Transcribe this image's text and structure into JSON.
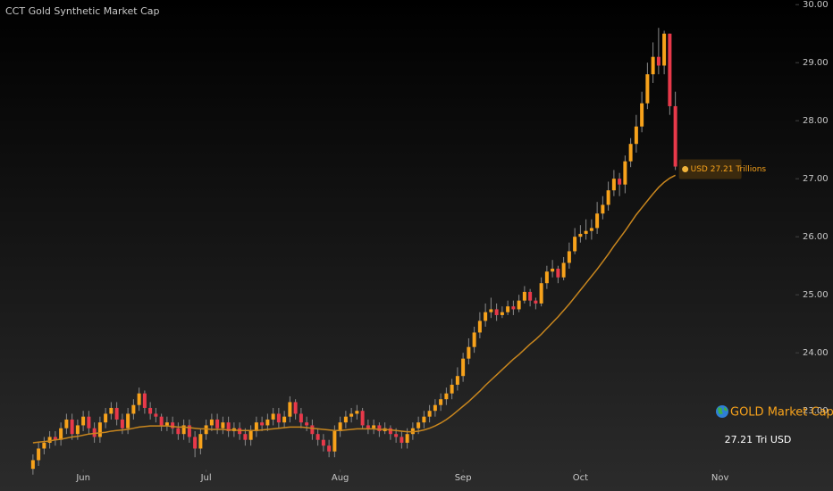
{
  "chart_data": {
    "type": "candlestick",
    "title": "CCT Gold Synthetic Market Cap",
    "price_label": "USD 27.21 Trillions",
    "info_title": "GOLD Market Cap",
    "info_value": "27.21 Tri USD",
    "up_color": "#f7a21b",
    "down_color": "#e8394a",
    "ma_color": "#c8861e",
    "ylim": [
      22.08,
      30.08
    ],
    "yticks": [
      {
        "value": 23,
        "label": "23.00"
      },
      {
        "value": 24,
        "label": "24.00"
      },
      {
        "value": 25,
        "label": "25.00"
      },
      {
        "value": 26,
        "label": "26.00"
      },
      {
        "value": 27,
        "label": "27.00"
      },
      {
        "value": 28,
        "label": "28.00"
      },
      {
        "value": 29,
        "label": "29.00"
      },
      {
        "value": 30,
        "label": "30.00"
      }
    ],
    "xlim": [
      -5.9,
      136.5
    ],
    "xticks": [
      {
        "value": 9,
        "label": "Jun"
      },
      {
        "value": 31,
        "label": "Jul"
      },
      {
        "value": 55,
        "label": "Aug"
      },
      {
        "value": 77,
        "label": "Sep"
      },
      {
        "value": 98,
        "label": "Oct"
      },
      {
        "value": 123,
        "label": "Nov"
      }
    ],
    "open": [
      22.0,
      22.15,
      22.35,
      22.45,
      22.55,
      22.5,
      22.7,
      22.85,
      22.6,
      22.75,
      22.9,
      22.7,
      22.55,
      22.8,
      22.95,
      23.05,
      22.85,
      22.7,
      22.95,
      23.1,
      23.3,
      23.05,
      22.95,
      22.9,
      22.75,
      22.8,
      22.7,
      22.6,
      22.75,
      22.55,
      22.35,
      22.6,
      22.75,
      22.85,
      22.7,
      22.8,
      22.65,
      22.7,
      22.6,
      22.5,
      22.65,
      22.8,
      22.75,
      22.85,
      22.95,
      22.8,
      22.9,
      23.15,
      22.95,
      22.8,
      22.75,
      22.6,
      22.5,
      22.4,
      22.3,
      22.65,
      22.8,
      22.9,
      22.95,
      23.0,
      22.75,
      22.7,
      22.75,
      22.65,
      22.7,
      22.6,
      22.55,
      22.45,
      22.6,
      22.7,
      22.8,
      22.9,
      23.0,
      23.1,
      23.2,
      23.3,
      23.45,
      23.6,
      23.9,
      24.1,
      24.35,
      24.55,
      24.7,
      24.75,
      24.65,
      24.7,
      24.8,
      24.75,
      24.9,
      25.05,
      24.9,
      24.85,
      25.2,
      25.4,
      25.45,
      25.3,
      25.55,
      25.75,
      26.0,
      26.05,
      26.1,
      26.15,
      26.4,
      26.55,
      26.8,
      27.0,
      26.9,
      27.3,
      27.6,
      27.9,
      28.3,
      28.8,
      29.1,
      28.95,
      29.5,
      28.25
    ],
    "high": [
      22.25,
      22.45,
      22.55,
      22.65,
      22.65,
      22.8,
      22.95,
      22.95,
      22.85,
      23.0,
      23.0,
      22.8,
      22.9,
      23.05,
      23.15,
      23.15,
      22.95,
      23.05,
      23.2,
      23.4,
      23.35,
      23.15,
      23.05,
      22.95,
      22.9,
      22.9,
      22.8,
      22.85,
      22.85,
      22.65,
      22.7,
      22.85,
      22.95,
      22.95,
      22.9,
      22.9,
      22.8,
      22.8,
      22.7,
      22.75,
      22.9,
      22.9,
      22.95,
      23.05,
      23.05,
      23.0,
      23.25,
      23.2,
      23.05,
      22.9,
      22.85,
      22.7,
      22.6,
      22.5,
      22.75,
      22.9,
      23.0,
      23.05,
      23.1,
      23.05,
      22.85,
      22.85,
      22.8,
      22.8,
      22.75,
      22.7,
      22.65,
      22.7,
      22.8,
      22.9,
      23.0,
      23.1,
      23.2,
      23.3,
      23.4,
      23.55,
      23.75,
      24.0,
      24.25,
      24.45,
      24.7,
      24.85,
      24.95,
      24.85,
      24.8,
      24.9,
      24.9,
      25.0,
      25.15,
      25.1,
      24.95,
      25.3,
      25.5,
      25.6,
      25.5,
      25.65,
      25.9,
      26.15,
      26.2,
      26.3,
      26.3,
      26.6,
      26.7,
      26.95,
      27.15,
      27.1,
      27.4,
      27.7,
      28.1,
      28.5,
      29.0,
      29.35,
      29.6,
      29.55,
      29.5,
      28.5
    ],
    "low": [
      21.9,
      22.05,
      22.25,
      22.35,
      22.4,
      22.4,
      22.6,
      22.5,
      22.5,
      22.65,
      22.6,
      22.45,
      22.45,
      22.7,
      22.85,
      22.75,
      22.6,
      22.6,
      22.85,
      23.0,
      22.95,
      22.85,
      22.8,
      22.65,
      22.65,
      22.6,
      22.5,
      22.5,
      22.45,
      22.2,
      22.25,
      22.5,
      22.65,
      22.6,
      22.6,
      22.55,
      22.55,
      22.5,
      22.4,
      22.4,
      22.55,
      22.65,
      22.65,
      22.75,
      22.7,
      22.7,
      22.8,
      22.85,
      22.7,
      22.65,
      22.5,
      22.4,
      22.3,
      22.2,
      22.2,
      22.55,
      22.7,
      22.8,
      22.85,
      22.7,
      22.6,
      22.6,
      22.55,
      22.6,
      22.5,
      22.45,
      22.35,
      22.35,
      22.5,
      22.6,
      22.7,
      22.8,
      22.9,
      23.0,
      23.1,
      23.2,
      23.35,
      23.5,
      23.8,
      24.0,
      24.25,
      24.45,
      24.6,
      24.55,
      24.6,
      24.65,
      24.65,
      24.7,
      24.85,
      24.8,
      24.75,
      24.8,
      25.1,
      25.3,
      25.2,
      25.25,
      25.45,
      25.7,
      25.9,
      25.95,
      25.95,
      26.05,
      26.3,
      26.45,
      26.7,
      26.7,
      26.75,
      27.2,
      27.45,
      27.8,
      28.2,
      28.65,
      28.8,
      28.8,
      28.1,
      27.15
    ],
    "close": [
      22.15,
      22.35,
      22.45,
      22.55,
      22.5,
      22.7,
      22.85,
      22.6,
      22.75,
      22.9,
      22.7,
      22.55,
      22.8,
      22.95,
      23.05,
      22.85,
      22.7,
      22.95,
      23.1,
      23.3,
      23.05,
      22.95,
      22.9,
      22.75,
      22.8,
      22.7,
      22.6,
      22.75,
      22.55,
      22.35,
      22.6,
      22.75,
      22.85,
      22.7,
      22.8,
      22.65,
      22.7,
      22.6,
      22.5,
      22.65,
      22.8,
      22.75,
      22.85,
      22.95,
      22.8,
      22.9,
      23.15,
      22.95,
      22.8,
      22.75,
      22.6,
      22.5,
      22.4,
      22.3,
      22.65,
      22.8,
      22.9,
      22.95,
      23.0,
      22.75,
      22.7,
      22.75,
      22.65,
      22.7,
      22.6,
      22.55,
      22.45,
      22.6,
      22.7,
      22.8,
      22.9,
      23.0,
      23.1,
      23.2,
      23.3,
      23.45,
      23.6,
      23.9,
      24.1,
      24.35,
      24.55,
      24.7,
      24.75,
      24.65,
      24.7,
      24.8,
      24.75,
      24.9,
      25.05,
      24.9,
      24.85,
      25.2,
      25.4,
      25.45,
      25.3,
      25.55,
      25.75,
      26.0,
      26.05,
      26.1,
      26.15,
      26.4,
      26.55,
      26.8,
      27.0,
      26.9,
      27.3,
      27.6,
      27.9,
      28.3,
      28.8,
      29.1,
      28.95,
      29.5,
      28.25,
      27.21
    ],
    "ma": [
      22.45,
      22.46,
      22.47,
      22.48,
      22.5,
      22.51,
      22.53,
      22.55,
      22.56,
      22.58,
      22.6,
      22.61,
      22.62,
      22.63,
      22.65,
      22.66,
      22.67,
      22.68,
      22.7,
      22.72,
      22.73,
      22.74,
      22.74,
      22.74,
      22.74,
      22.73,
      22.72,
      22.72,
      22.71,
      22.7,
      22.69,
      22.69,
      22.68,
      22.68,
      22.68,
      22.67,
      22.67,
      22.66,
      22.66,
      22.66,
      22.66,
      22.67,
      22.68,
      22.69,
      22.7,
      22.71,
      22.72,
      22.72,
      22.72,
      22.71,
      22.7,
      22.69,
      22.68,
      22.67,
      22.66,
      22.66,
      22.67,
      22.68,
      22.69,
      22.69,
      22.69,
      22.69,
      22.68,
      22.68,
      22.67,
      22.66,
      22.65,
      22.64,
      22.64,
      22.65,
      22.67,
      22.7,
      22.74,
      22.79,
      22.85,
      22.92,
      23.0,
      23.08,
      23.16,
      23.25,
      23.34,
      23.44,
      23.53,
      23.62,
      23.71,
      23.8,
      23.89,
      23.97,
      24.06,
      24.15,
      24.23,
      24.32,
      24.42,
      24.52,
      24.62,
      24.73,
      24.84,
      24.96,
      25.08,
      25.2,
      25.32,
      25.44,
      25.57,
      25.7,
      25.84,
      25.97,
      26.1,
      26.24,
      26.38,
      26.5,
      26.62,
      26.74,
      26.85,
      26.94,
      27.01,
      27.06
    ]
  }
}
